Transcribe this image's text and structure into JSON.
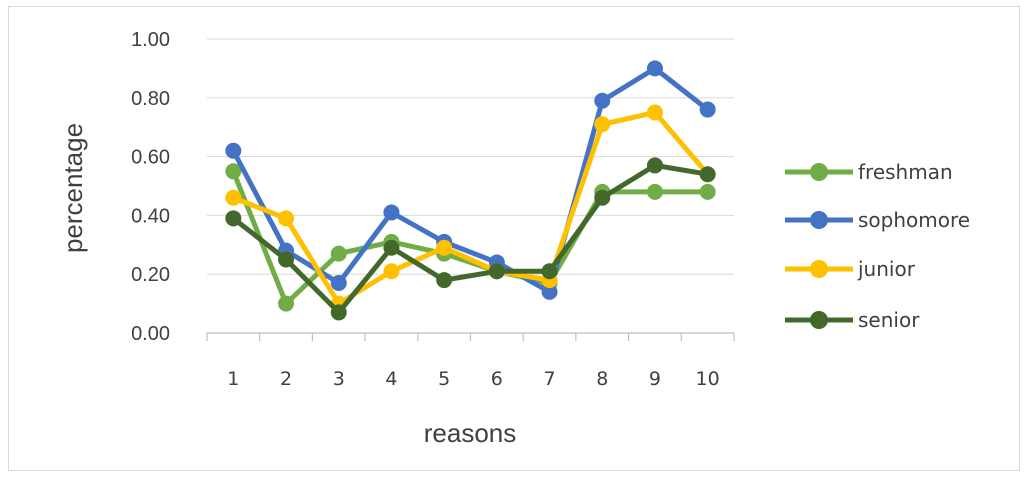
{
  "chart_data": {
    "type": "line",
    "categories": [
      "1",
      "2",
      "3",
      "4",
      "5",
      "6",
      "7",
      "8",
      "9",
      "10"
    ],
    "xlabel": "reasons",
    "ylabel": "percentage",
    "ylim": [
      0,
      1
    ],
    "yticks": [
      "0.00",
      "0.20",
      "0.40",
      "0.60",
      "0.80",
      "1.00"
    ],
    "grid": true,
    "legend_position": "right",
    "series": [
      {
        "name": "freshman",
        "color": "#70ad47",
        "values": [
          0.55,
          0.1,
          0.27,
          0.31,
          0.27,
          0.21,
          0.17,
          0.48,
          0.48,
          0.48
        ]
      },
      {
        "name": "sophomore",
        "color": "#4472c4",
        "values": [
          0.62,
          0.28,
          0.17,
          0.41,
          0.31,
          0.24,
          0.14,
          0.79,
          0.9,
          0.76
        ]
      },
      {
        "name": "junior",
        "color": "#ffc000",
        "values": [
          0.46,
          0.39,
          0.1,
          0.21,
          0.29,
          0.21,
          0.18,
          0.71,
          0.75,
          0.54
        ]
      },
      {
        "name": "senior",
        "color": "#43682b",
        "values": [
          0.39,
          0.25,
          0.07,
          0.29,
          0.18,
          0.21,
          0.21,
          0.46,
          0.57,
          0.54
        ]
      }
    ]
  }
}
